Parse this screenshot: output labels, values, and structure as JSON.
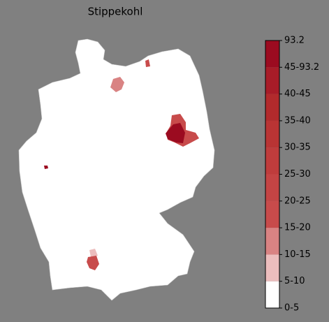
{
  "title": "Stippekohl",
  "colorbar": {
    "labels": [
      "0-5",
      "5-10",
      "10-15",
      "15-20",
      "20-25",
      "25-30",
      "30-35",
      "35-40",
      "40-45",
      "45-93.2",
      "93.2"
    ],
    "colors": [
      "#ffffff",
      "#ecbdbd",
      "#d98383",
      "#c84b4b",
      "#c44444",
      "#bf3c3c",
      "#b93434",
      "#b22a2c",
      "#a81c28",
      "#9b0b20"
    ]
  }
}
